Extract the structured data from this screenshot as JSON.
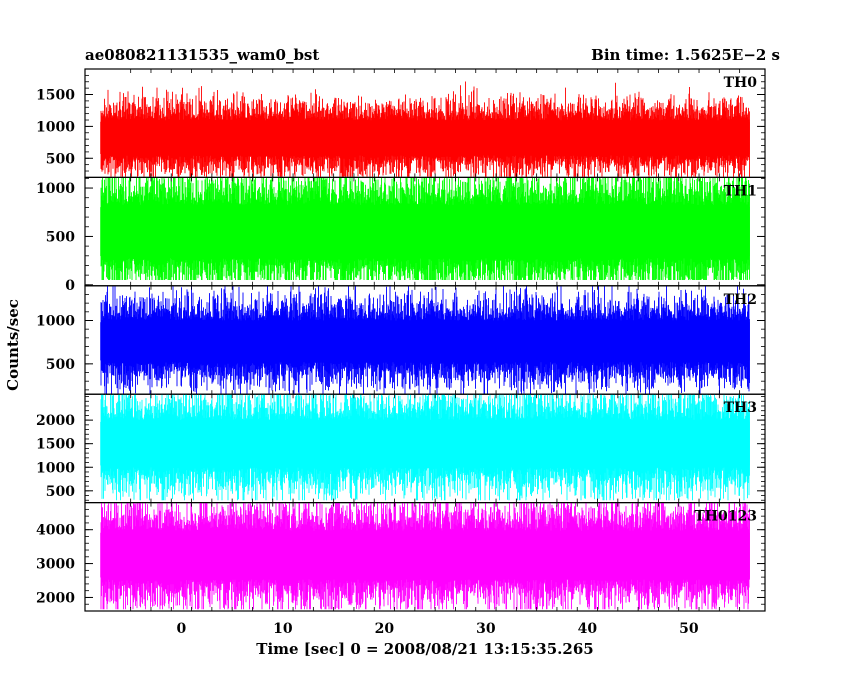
{
  "header": {
    "title_left": "ae080821131535_wam0_bst",
    "title_right": "Bin time: 1.5625E−2 s"
  },
  "chart_data": {
    "type": "line",
    "title": "ae080821131535_wam0_bst",
    "subtitle": "Bin time: 1.5625E−2 s",
    "xlabel": "Time [sec] 0 = 2008/08/21 13:15:35.265",
    "ylabel": "Counts/sec",
    "xlim": [
      -9.5,
      57.5
    ],
    "xticks": [
      0,
      10,
      20,
      30,
      40,
      50
    ],
    "data_xrange": [
      -8,
      56
    ],
    "bin_time": 0.015625,
    "grid": false,
    "panels": [
      {
        "name": "TH0",
        "color": "#ff0000",
        "ylim": [
          200,
          1900
        ],
        "yticks": [
          500,
          1000,
          1500
        ],
        "mean": 820,
        "spread": 230,
        "min": 210,
        "max": 1900
      },
      {
        "name": "TH1",
        "color": "#00ff00",
        "ylim": [
          -10,
          1110
        ],
        "yticks": [
          0,
          500,
          1000
        ],
        "mean": 550,
        "spread": 230,
        "min": 50,
        "max": 1110
      },
      {
        "name": "TH2",
        "color": "#0000ff",
        "ylim": [
          150,
          1400
        ],
        "yticks": [
          500,
          1000
        ],
        "mean": 760,
        "spread": 200,
        "min": 150,
        "max": 1400
      },
      {
        "name": "TH3",
        "color": "#00ffff",
        "ylim": [
          250,
          2550
        ],
        "yticks": [
          500,
          1000,
          1500,
          2000
        ],
        "mean": 1500,
        "spread": 420,
        "min": 300,
        "max": 2550
      },
      {
        "name": "TH0123",
        "color": "#ff00ff",
        "ylim": [
          1600,
          4800
        ],
        "yticks": [
          2000,
          3000,
          4000
        ],
        "mean": 3250,
        "spread": 600,
        "min": 1650,
        "max": 4800
      }
    ]
  }
}
